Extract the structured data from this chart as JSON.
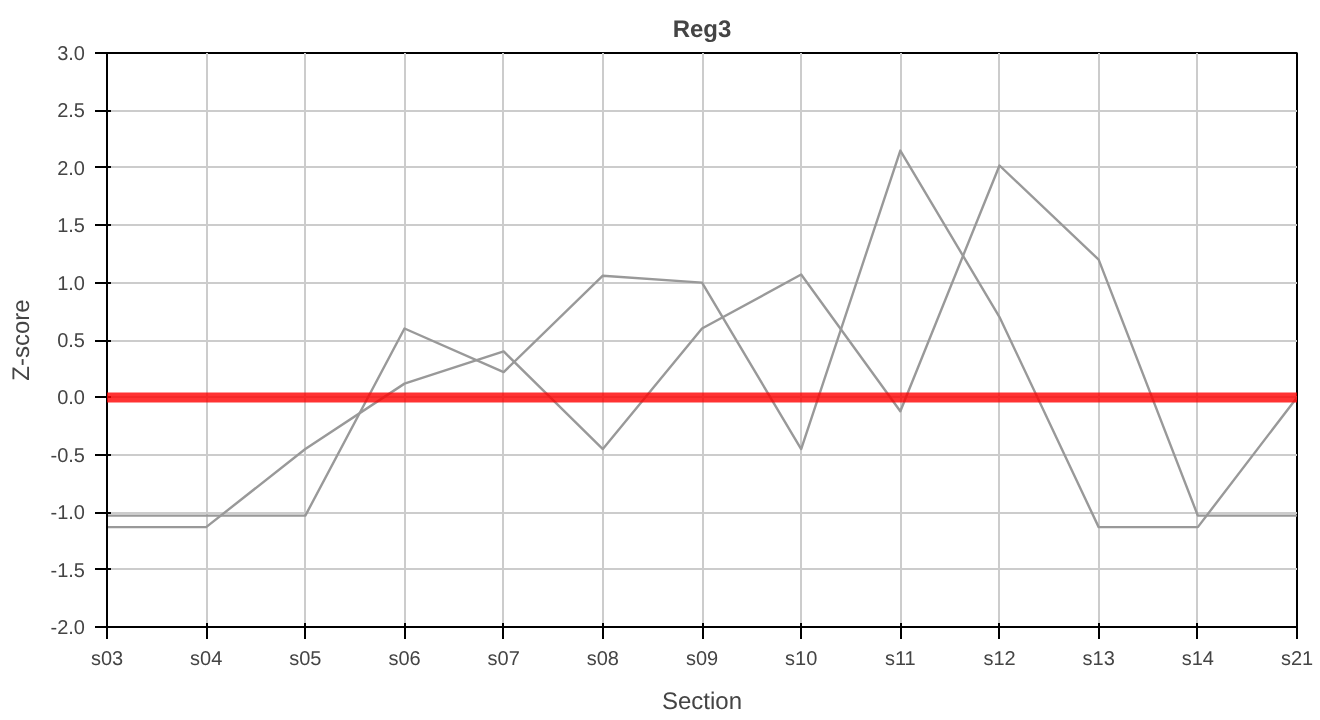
{
  "chart_data": {
    "type": "line",
    "title": "Reg3",
    "xlabel": "Section",
    "ylabel": "Z-score",
    "categories": [
      "s03",
      "s04",
      "s05",
      "s06",
      "s07",
      "s08",
      "s09",
      "s10",
      "s11",
      "s12",
      "s13",
      "s14",
      "s21"
    ],
    "series": [
      {
        "color": "#999999",
        "values": [
          -1.03,
          -1.03,
          -1.03,
          0.6,
          0.22,
          1.06,
          1.0,
          -0.45,
          2.15,
          0.7,
          -1.13,
          -1.13,
          0.0
        ]
      },
      {
        "color": "#999999",
        "values": [
          -1.13,
          -1.13,
          -0.45,
          0.12,
          0.4,
          -0.45,
          0.6,
          1.07,
          -0.12,
          2.02,
          1.2,
          -1.03,
          -1.03
        ]
      }
    ],
    "ylim": [
      -2.0,
      3.0
    ],
    "yticks": [
      {
        "value": -2,
        "label": "-2.0"
      },
      {
        "value": -1.5,
        "label": "-1.5"
      },
      {
        "value": -1,
        "label": "-1.0"
      },
      {
        "value": -0.5,
        "label": "-0.5"
      },
      {
        "value": 0,
        "label": "0.0"
      },
      {
        "value": 0.5,
        "label": "0.5"
      },
      {
        "value": 1,
        "label": "1.0"
      },
      {
        "value": 1.5,
        "label": "1.5"
      },
      {
        "value": 2,
        "label": "2.0"
      },
      {
        "value": 2.5,
        "label": "2.5"
      },
      {
        "value": 3,
        "label": "3.0"
      }
    ],
    "ref_lines": [
      {
        "axis": "y",
        "value": 0,
        "color": "#ff0000"
      }
    ],
    "grid": true
  }
}
